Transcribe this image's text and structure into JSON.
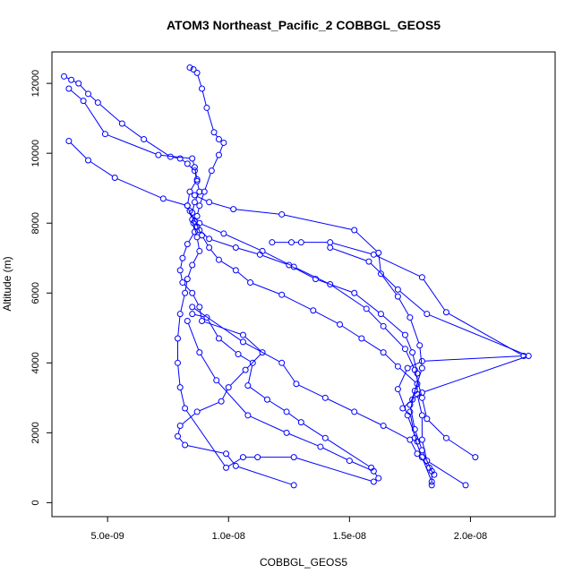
{
  "chart_data": {
    "type": "line",
    "title": "ATOM3 Northeast_Pacific_2 COBBGL_GEOS5",
    "xlabel": "COBBGL_GEOS5",
    "ylabel": "Altitude (m)",
    "x_ticks": [
      5e-09,
      1e-08,
      1.5e-08,
      2e-08
    ],
    "x_tick_labels": [
      "5.0e-09",
      "1.0e-08",
      "1.5e-08",
      "2.0e-08"
    ],
    "y_ticks": [
      0,
      2000,
      4000,
      6000,
      8000,
      10000,
      12000
    ],
    "y_tick_labels": [
      "0",
      "2000",
      "4000",
      "6000",
      "8000",
      "10000",
      "12000"
    ],
    "xlim": [
      2.7e-09,
      2.35e-08
    ],
    "ylim": [
      -400,
      12900
    ],
    "grid": false,
    "series_color": "#0000ff",
    "marker": "open-circle",
    "series": [
      {
        "x": [
          3.2e-09,
          3.5e-09,
          3.8e-09,
          4.2e-09,
          4.6e-09,
          5.6e-09,
          6.5e-09,
          7.6e-09,
          8e-09,
          8.3e-09,
          8.6e-09,
          8.7e-09,
          8.8e-09,
          8.6e-09,
          8.5e-09,
          8.55e-09,
          8.7e-09,
          8.8e-09,
          8.5e-09,
          8.3e-09,
          8.2e-09,
          8e-09,
          7.9e-09,
          7.9e-09,
          8e-09,
          8.2e-09,
          9.9e-09,
          1.06e-08,
          1.12e-08,
          1.27e-08,
          1.6e-08
        ],
        "y": [
          12200,
          12100,
          12000,
          11700,
          11450,
          10850,
          10400,
          9900,
          9850,
          9700,
          9500,
          9200,
          8900,
          8600,
          8300,
          8000,
          7600,
          7200,
          6800,
          6400,
          6000,
          5400,
          4700,
          4000,
          3300,
          2700,
          1000,
          1300,
          1300,
          1300,
          600
        ]
      },
      {
        "x": [
          3.4e-09,
          4e-09,
          4.9e-09,
          7.1e-09,
          8.5e-09,
          8.6e-09,
          8.7e-09,
          8.4e-09,
          8.3e-09,
          8.5e-09,
          8.6e-09,
          8.3e-09,
          8.1e-09,
          8e-09,
          8.1e-09,
          8.5e-09,
          8.8e-09,
          8.9e-09,
          1.06e-08,
          1.14e-08,
          1.07e-08,
          1e-08,
          9.7e-09,
          8.7e-09,
          8e-09,
          7.9e-09,
          8.2e-09,
          9.9e-09,
          1.03e-08,
          1.27e-08
        ],
        "y": [
          11850,
          11500,
          10550,
          9950,
          9850,
          9600,
          9250,
          8900,
          8500,
          8100,
          7750,
          7400,
          7000,
          6650,
          6300,
          6000,
          5600,
          5200,
          4800,
          4300,
          3800,
          3300,
          2900,
          2600,
          2200,
          1900,
          1650,
          1400,
          1050,
          500
        ]
      },
      {
        "x": [
          3.4e-09,
          4.2e-09,
          5.3e-09,
          7.3e-09,
          8.3e-09,
          8.4e-09,
          8.6e-09,
          8.8e-09,
          9.2e-09,
          1.03e-08,
          1.13e-08,
          1.25e-08,
          1.36e-08,
          1.52e-08,
          1.63e-08,
          1.73e-08,
          1.76e-08,
          1.78e-08,
          1.78e-08,
          1.8e-08,
          1.8e-08,
          1.82e-08,
          1.98e-08
        ],
        "y": [
          10350,
          9800,
          9300,
          8700,
          8500,
          8350,
          8050,
          7800,
          7550,
          7300,
          7100,
          6800,
          6400,
          6000,
          5400,
          4800,
          4300,
          3700,
          3100,
          2500,
          1800,
          1200,
          500
        ]
      },
      {
        "x": [
          8.4e-09,
          8.55e-09,
          8.7e-09,
          8.9e-09,
          9.1e-09,
          9.4e-09,
          9.6e-09,
          9.8e-09,
          9.6e-09,
          9.3e-09,
          9e-09,
          8.8e-09,
          8.7e-09,
          8.7e-09,
          8.9e-09,
          9.2e-09,
          9.6e-09,
          1.03e-08,
          1.09e-08,
          1.22e-08,
          1.35e-08,
          1.46e-08,
          1.55e-08,
          1.64e-08,
          1.7e-08,
          1.78e-08,
          1.75e-08,
          1.77e-08,
          1.8e-08,
          1.84e-08,
          1.84e-08
        ],
        "y": [
          12450,
          12400,
          12300,
          11850,
          11300,
          10600,
          10400,
          10300,
          9950,
          9500,
          8900,
          8500,
          8200,
          7900,
          7650,
          7300,
          6950,
          6650,
          6300,
          5950,
          5500,
          5100,
          4700,
          4300,
          3900,
          3400,
          2800,
          2100,
          1500,
          900,
          500
        ]
      },
      {
        "x": [
          8.6e-09,
          9.2e-09,
          1.02e-08,
          1.22e-08,
          1.52e-08,
          1.62e-08,
          1.63e-08,
          1.7e-08,
          1.75e-08,
          1.79e-08,
          1.8e-08,
          1.77e-08,
          1.75e-08,
          1.77e-08,
          1.8e-08,
          1.84e-08
        ],
        "y": [
          8800,
          8600,
          8400,
          8250,
          7800,
          7150,
          6550,
          5900,
          5300,
          4500,
          3850,
          3200,
          2600,
          1850,
          1300,
          600
        ]
      },
      {
        "x": [
          8.8e-09,
          9.8e-09,
          1.14e-08,
          1.27e-08,
          1.42e-08,
          1.57e-08,
          1.64e-08,
          1.73e-08,
          1.77e-08,
          1.8e-08,
          1.82e-08,
          1.9e-08,
          2.02e-08
        ],
        "y": [
          8000,
          7700,
          7200,
          6750,
          6250,
          5550,
          5050,
          4400,
          3800,
          3000,
          2400,
          1850,
          1300
        ]
      },
      {
        "x": [
          1.18e-08,
          1.26e-08,
          1.3e-08,
          1.42e-08,
          1.6e-08,
          1.8e-08,
          1.9e-08,
          2.22e-08,
          1.8e-08,
          1.74e-08,
          1.7e-08,
          1.74e-08,
          1.78e-08
        ],
        "y": [
          7450,
          7450,
          7450,
          7450,
          7100,
          6450,
          5450,
          4200,
          4050,
          3850,
          3250,
          2500,
          1750
        ]
      },
      {
        "x": [
          1.42e-08,
          1.58e-08,
          1.7e-08,
          1.82e-08,
          2.24e-08,
          1.8e-08,
          1.76e-08,
          1.72e-08
        ],
        "y": [
          7300,
          6900,
          6100,
          5400,
          4200,
          3150,
          2950,
          2700
        ]
      },
      {
        "x": [
          8.5e-09,
          1.06e-08,
          1.22e-08,
          1.28e-08,
          1.4e-08,
          1.52e-08,
          1.64e-08,
          1.75e-08,
          1.78e-08,
          1.83e-08,
          1.85e-08
        ],
        "y": [
          5600,
          4600,
          4000,
          3400,
          3000,
          2600,
          2200,
          1800,
          1400,
          1000,
          800
        ]
      },
      {
        "x": [
          8.3e-09,
          8.8e-09,
          9.5e-09,
          1.08e-08,
          1.24e-08,
          1.38e-08,
          1.5e-08,
          1.6e-08,
          1.62e-08
        ],
        "y": [
          5200,
          4300,
          3500,
          2500,
          2000,
          1600,
          1200,
          900,
          700
        ]
      },
      {
        "x": [
          8.5e-09,
          9.1e-09,
          9.6e-09,
          1.04e-08,
          1.1e-08,
          1.08e-08,
          1.16e-08,
          1.24e-08,
          1.3e-08,
          1.4e-08,
          1.59e-08
        ],
        "y": [
          5400,
          5300,
          4700,
          4250,
          4000,
          3350,
          2950,
          2600,
          2300,
          1850,
          1000
        ]
      }
    ]
  }
}
